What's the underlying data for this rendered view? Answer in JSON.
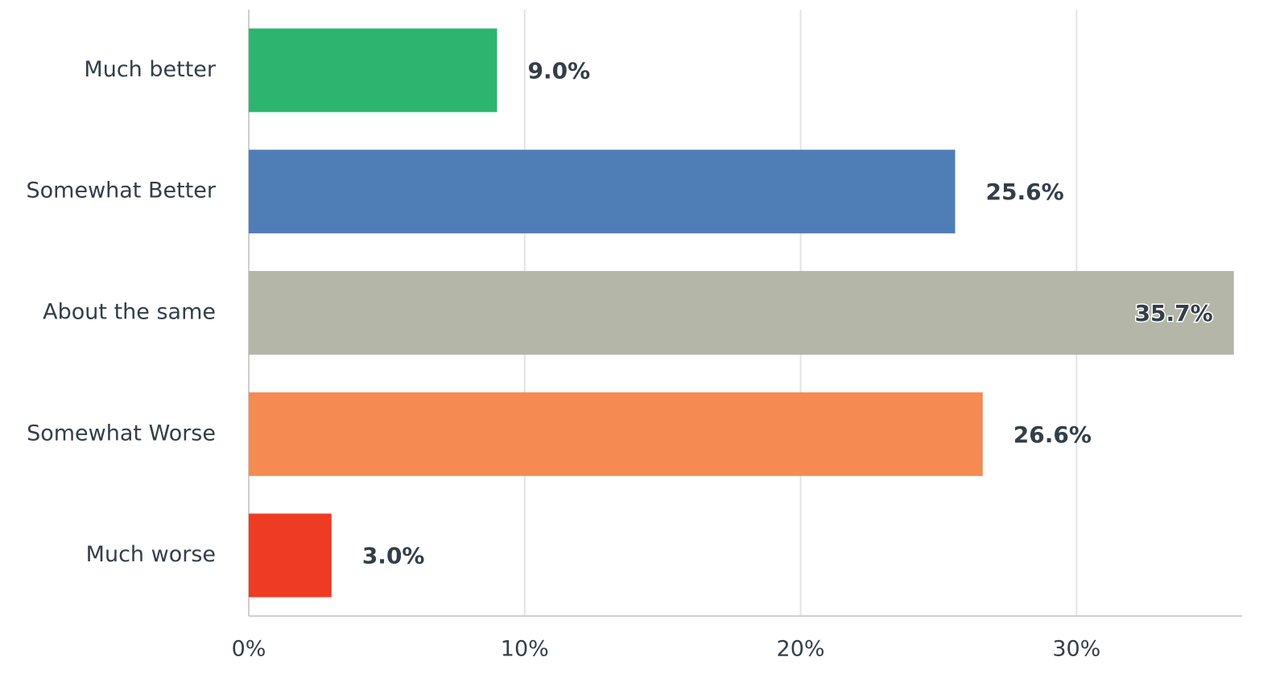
{
  "chart_data": {
    "type": "barh",
    "categories": [
      "Much better",
      "Somewhat Better",
      "About the same",
      "Somewhat Worse",
      "Much worse"
    ],
    "values": [
      9.0,
      25.6,
      35.7,
      26.6,
      3.0
    ],
    "value_labels": [
      "9.0%",
      "25.6%",
      "35.7%",
      "26.6%",
      "3.0%"
    ],
    "colors": [
      "#2db56f",
      "#4f7db6",
      "#b4b6a8",
      "#f58b53",
      "#ee3b24"
    ],
    "xlim": [
      0,
      36
    ],
    "xticks": [
      {
        "value": 0,
        "label": "0%"
      },
      {
        "value": 10,
        "label": "10%"
      },
      {
        "value": 20,
        "label": "20%"
      },
      {
        "value": 30,
        "label": "30%"
      }
    ],
    "grid": true
  }
}
